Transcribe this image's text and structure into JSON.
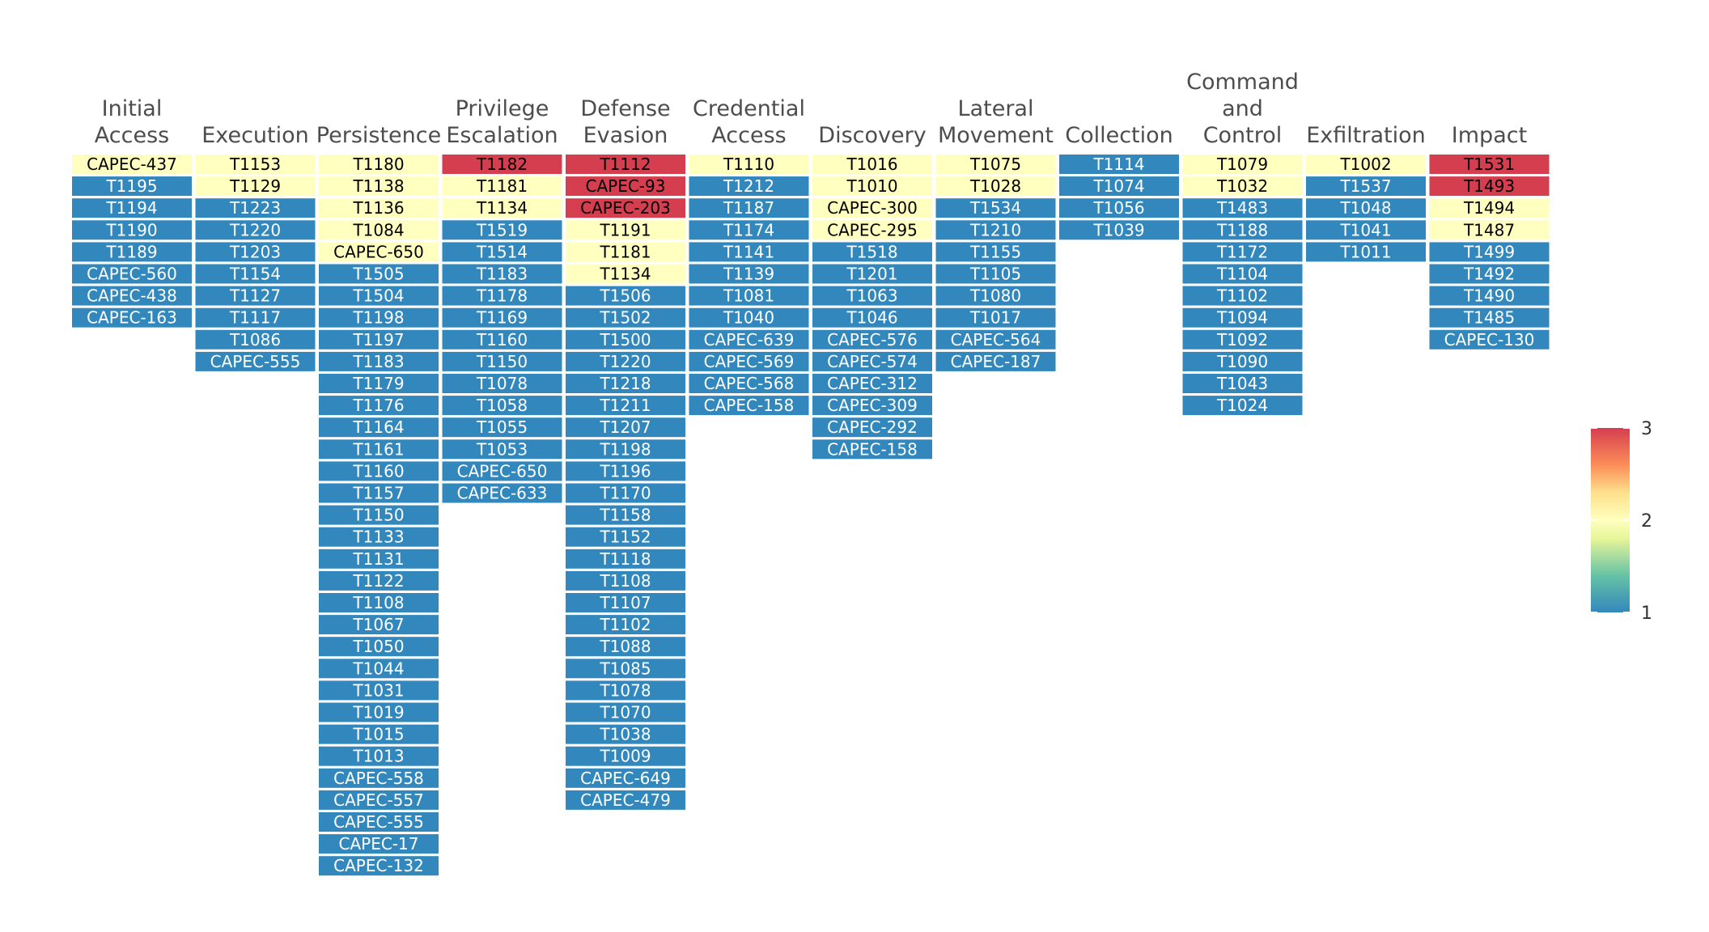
{
  "chart_data": {
    "type": "heatmap",
    "title": "",
    "colors": {
      "low": "#3288bd",
      "mid": "#ffffbf",
      "high": "#d53e4f",
      "text_dark": "#000000",
      "text_light": "#ffffff"
    },
    "scale": {
      "min": 1,
      "max": 3,
      "ticks": [
        "1",
        "2",
        "3"
      ]
    },
    "columns": [
      {
        "title": [
          "Initial",
          "Access"
        ],
        "items": [
          {
            "label": "CAPEC-437",
            "value": 2
          },
          {
            "label": "T1195",
            "value": 1
          },
          {
            "label": "T1194",
            "value": 1
          },
          {
            "label": "T1190",
            "value": 1
          },
          {
            "label": "T1189",
            "value": 1
          },
          {
            "label": "CAPEC-560",
            "value": 1
          },
          {
            "label": "CAPEC-438",
            "value": 1
          },
          {
            "label": "CAPEC-163",
            "value": 1
          }
        ]
      },
      {
        "title": [
          "Execution"
        ],
        "items": [
          {
            "label": "T1153",
            "value": 2
          },
          {
            "label": "T1129",
            "value": 2
          },
          {
            "label": "T1223",
            "value": 1
          },
          {
            "label": "T1220",
            "value": 1
          },
          {
            "label": "T1203",
            "value": 1
          },
          {
            "label": "T1154",
            "value": 1
          },
          {
            "label": "T1127",
            "value": 1
          },
          {
            "label": "T1117",
            "value": 1
          },
          {
            "label": "T1086",
            "value": 1
          },
          {
            "label": "CAPEC-555",
            "value": 1
          }
        ]
      },
      {
        "title": [
          "Persistence"
        ],
        "items": [
          {
            "label": "T1180",
            "value": 2
          },
          {
            "label": "T1138",
            "value": 2
          },
          {
            "label": "T1136",
            "value": 2
          },
          {
            "label": "T1084",
            "value": 2
          },
          {
            "label": "CAPEC-650",
            "value": 2
          },
          {
            "label": "T1505",
            "value": 1
          },
          {
            "label": "T1504",
            "value": 1
          },
          {
            "label": "T1198",
            "value": 1
          },
          {
            "label": "T1197",
            "value": 1
          },
          {
            "label": "T1183",
            "value": 1
          },
          {
            "label": "T1179",
            "value": 1
          },
          {
            "label": "T1176",
            "value": 1
          },
          {
            "label": "T1164",
            "value": 1
          },
          {
            "label": "T1161",
            "value": 1
          },
          {
            "label": "T1160",
            "value": 1
          },
          {
            "label": "T1157",
            "value": 1
          },
          {
            "label": "T1150",
            "value": 1
          },
          {
            "label": "T1133",
            "value": 1
          },
          {
            "label": "T1131",
            "value": 1
          },
          {
            "label": "T1122",
            "value": 1
          },
          {
            "label": "T1108",
            "value": 1
          },
          {
            "label": "T1067",
            "value": 1
          },
          {
            "label": "T1050",
            "value": 1
          },
          {
            "label": "T1044",
            "value": 1
          },
          {
            "label": "T1031",
            "value": 1
          },
          {
            "label": "T1019",
            "value": 1
          },
          {
            "label": "T1015",
            "value": 1
          },
          {
            "label": "T1013",
            "value": 1
          },
          {
            "label": "CAPEC-558",
            "value": 1
          },
          {
            "label": "CAPEC-557",
            "value": 1
          },
          {
            "label": "CAPEC-555",
            "value": 1
          },
          {
            "label": "CAPEC-17",
            "value": 1
          },
          {
            "label": "CAPEC-132",
            "value": 1
          }
        ]
      },
      {
        "title": [
          "Privilege",
          "Escalation"
        ],
        "items": [
          {
            "label": "T1182",
            "value": 3
          },
          {
            "label": "T1181",
            "value": 2
          },
          {
            "label": "T1134",
            "value": 2
          },
          {
            "label": "T1519",
            "value": 1
          },
          {
            "label": "T1514",
            "value": 1
          },
          {
            "label": "T1183",
            "value": 1
          },
          {
            "label": "T1178",
            "value": 1
          },
          {
            "label": "T1169",
            "value": 1
          },
          {
            "label": "T1160",
            "value": 1
          },
          {
            "label": "T1150",
            "value": 1
          },
          {
            "label": "T1078",
            "value": 1
          },
          {
            "label": "T1058",
            "value": 1
          },
          {
            "label": "T1055",
            "value": 1
          },
          {
            "label": "T1053",
            "value": 1
          },
          {
            "label": "CAPEC-650",
            "value": 1
          },
          {
            "label": "CAPEC-633",
            "value": 1
          }
        ]
      },
      {
        "title": [
          "Defense",
          "Evasion"
        ],
        "items": [
          {
            "label": "T1112",
            "value": 3
          },
          {
            "label": "CAPEC-93",
            "value": 3
          },
          {
            "label": "CAPEC-203",
            "value": 3
          },
          {
            "label": "T1191",
            "value": 2
          },
          {
            "label": "T1181",
            "value": 2
          },
          {
            "label": "T1134",
            "value": 2
          },
          {
            "label": "T1506",
            "value": 1
          },
          {
            "label": "T1502",
            "value": 1
          },
          {
            "label": "T1500",
            "value": 1
          },
          {
            "label": "T1220",
            "value": 1
          },
          {
            "label": "T1218",
            "value": 1
          },
          {
            "label": "T1211",
            "value": 1
          },
          {
            "label": "T1207",
            "value": 1
          },
          {
            "label": "T1198",
            "value": 1
          },
          {
            "label": "T1196",
            "value": 1
          },
          {
            "label": "T1170",
            "value": 1
          },
          {
            "label": "T1158",
            "value": 1
          },
          {
            "label": "T1152",
            "value": 1
          },
          {
            "label": "T1118",
            "value": 1
          },
          {
            "label": "T1108",
            "value": 1
          },
          {
            "label": "T1107",
            "value": 1
          },
          {
            "label": "T1102",
            "value": 1
          },
          {
            "label": "T1088",
            "value": 1
          },
          {
            "label": "T1085",
            "value": 1
          },
          {
            "label": "T1078",
            "value": 1
          },
          {
            "label": "T1070",
            "value": 1
          },
          {
            "label": "T1038",
            "value": 1
          },
          {
            "label": "T1009",
            "value": 1
          },
          {
            "label": "CAPEC-649",
            "value": 1
          },
          {
            "label": "CAPEC-479",
            "value": 1
          }
        ]
      },
      {
        "title": [
          "Credential",
          "Access"
        ],
        "items": [
          {
            "label": "T1110",
            "value": 2
          },
          {
            "label": "T1212",
            "value": 1
          },
          {
            "label": "T1187",
            "value": 1
          },
          {
            "label": "T1174",
            "value": 1
          },
          {
            "label": "T1141",
            "value": 1
          },
          {
            "label": "T1139",
            "value": 1
          },
          {
            "label": "T1081",
            "value": 1
          },
          {
            "label": "T1040",
            "value": 1
          },
          {
            "label": "CAPEC-639",
            "value": 1
          },
          {
            "label": "CAPEC-569",
            "value": 1
          },
          {
            "label": "CAPEC-568",
            "value": 1
          },
          {
            "label": "CAPEC-158",
            "value": 1
          }
        ]
      },
      {
        "title": [
          "Discovery"
        ],
        "items": [
          {
            "label": "T1016",
            "value": 2
          },
          {
            "label": "T1010",
            "value": 2
          },
          {
            "label": "CAPEC-300",
            "value": 2
          },
          {
            "label": "CAPEC-295",
            "value": 2
          },
          {
            "label": "T1518",
            "value": 1
          },
          {
            "label": "T1201",
            "value": 1
          },
          {
            "label": "T1063",
            "value": 1
          },
          {
            "label": "T1046",
            "value": 1
          },
          {
            "label": "CAPEC-576",
            "value": 1
          },
          {
            "label": "CAPEC-574",
            "value": 1
          },
          {
            "label": "CAPEC-312",
            "value": 1
          },
          {
            "label": "CAPEC-309",
            "value": 1
          },
          {
            "label": "CAPEC-292",
            "value": 1
          },
          {
            "label": "CAPEC-158",
            "value": 1
          }
        ]
      },
      {
        "title": [
          "Lateral",
          "Movement"
        ],
        "items": [
          {
            "label": "T1075",
            "value": 2
          },
          {
            "label": "T1028",
            "value": 2
          },
          {
            "label": "T1534",
            "value": 1
          },
          {
            "label": "T1210",
            "value": 1
          },
          {
            "label": "T1155",
            "value": 1
          },
          {
            "label": "T1105",
            "value": 1
          },
          {
            "label": "T1080",
            "value": 1
          },
          {
            "label": "T1017",
            "value": 1
          },
          {
            "label": "CAPEC-564",
            "value": 1
          },
          {
            "label": "CAPEC-187",
            "value": 1
          }
        ]
      },
      {
        "title": [
          "Collection"
        ],
        "items": [
          {
            "label": "T1114",
            "value": 1
          },
          {
            "label": "T1074",
            "value": 1
          },
          {
            "label": "T1056",
            "value": 1
          },
          {
            "label": "T1039",
            "value": 1
          }
        ]
      },
      {
        "title": [
          "Command",
          "and",
          "Control"
        ],
        "items": [
          {
            "label": "T1079",
            "value": 2
          },
          {
            "label": "T1032",
            "value": 2
          },
          {
            "label": "T1483",
            "value": 1
          },
          {
            "label": "T1188",
            "value": 1
          },
          {
            "label": "T1172",
            "value": 1
          },
          {
            "label": "T1104",
            "value": 1
          },
          {
            "label": "T1102",
            "value": 1
          },
          {
            "label": "T1094",
            "value": 1
          },
          {
            "label": "T1092",
            "value": 1
          },
          {
            "label": "T1090",
            "value": 1
          },
          {
            "label": "T1043",
            "value": 1
          },
          {
            "label": "T1024",
            "value": 1
          }
        ]
      },
      {
        "title": [
          "Exfiltration"
        ],
        "items": [
          {
            "label": "T1002",
            "value": 2
          },
          {
            "label": "T1537",
            "value": 1
          },
          {
            "label": "T1048",
            "value": 1
          },
          {
            "label": "T1041",
            "value": 1
          },
          {
            "label": "T1011",
            "value": 1
          }
        ]
      },
      {
        "title": [
          "Impact"
        ],
        "items": [
          {
            "label": "T1531",
            "value": 3
          },
          {
            "label": "T1493",
            "value": 3
          },
          {
            "label": "T1494",
            "value": 2
          },
          {
            "label": "T1487",
            "value": 2
          },
          {
            "label": "T1499",
            "value": 1
          },
          {
            "label": "T1492",
            "value": 1
          },
          {
            "label": "T1490",
            "value": 1
          },
          {
            "label": "T1485",
            "value": 1
          },
          {
            "label": "CAPEC-130",
            "value": 1
          }
        ]
      }
    ]
  }
}
